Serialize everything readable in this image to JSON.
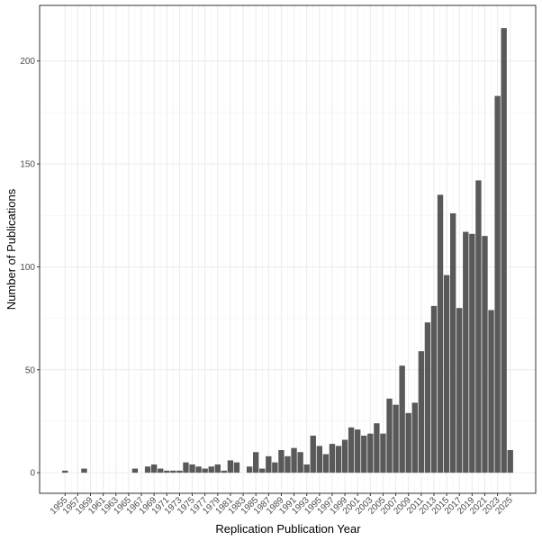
{
  "chart_data": {
    "type": "bar",
    "x_label": "Replication Publication Year",
    "y_label": "Number of Publications",
    "color": "#595959",
    "grid": true,
    "x": [
      1955,
      1958,
      1966,
      1968,
      1969,
      1970,
      1971,
      1972,
      1973,
      1974,
      1975,
      1976,
      1977,
      1978,
      1979,
      1980,
      1981,
      1982,
      1984,
      1985,
      1986,
      1987,
      1988,
      1989,
      1990,
      1991,
      1992,
      1993,
      1994,
      1995,
      1996,
      1997,
      1998,
      1999,
      2000,
      2001,
      2002,
      2003,
      2004,
      2005,
      2006,
      2007,
      2008,
      2009,
      2010,
      2011,
      2012,
      2013,
      2014,
      2015,
      2016,
      2017,
      2018,
      2019,
      2020,
      2021,
      2022,
      2023,
      2024,
      2025
    ],
    "values": [
      1,
      2,
      2,
      3,
      4,
      2,
      1,
      1,
      1,
      5,
      4,
      3,
      2,
      3,
      4,
      1,
      6,
      5,
      3,
      10,
      2,
      8,
      5,
      11,
      8,
      12,
      10,
      4,
      18,
      13,
      9,
      14,
      13,
      16,
      22,
      21,
      18,
      19,
      24,
      19,
      36,
      33,
      52,
      29,
      34,
      59,
      73,
      81,
      135,
      96,
      126,
      80,
      117,
      116,
      142,
      115,
      79,
      183,
      216,
      11
    ],
    "xlim": [
      1951,
      2029
    ],
    "xticks": [
      1955,
      1957,
      1959,
      1961,
      1963,
      1965,
      1967,
      1969,
      1971,
      1973,
      1975,
      1977,
      1979,
      1981,
      1983,
      1985,
      1987,
      1989,
      1991,
      1993,
      1995,
      1997,
      1999,
      2001,
      2003,
      2005,
      2007,
      2009,
      2011,
      2013,
      2015,
      2017,
      2019,
      2021,
      2023,
      2025
    ],
    "ylim": [
      -10,
      227
    ],
    "yticks": [
      0,
      50,
      100,
      150,
      200
    ]
  }
}
